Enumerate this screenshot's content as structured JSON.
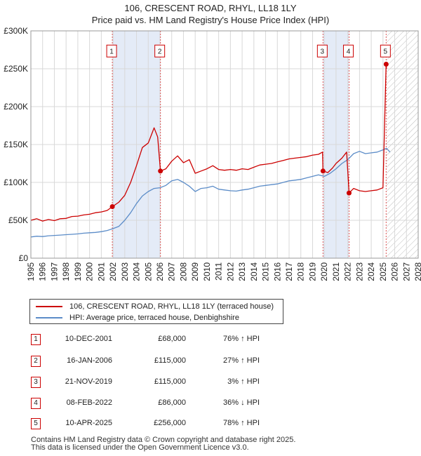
{
  "chart_data": {
    "type": "line",
    "title": "106, CRESCENT ROAD, RHYL, LL18 1LY",
    "subtitle": "Price paid vs. HM Land Registry's House Price Index (HPI)",
    "xlim": [
      1995,
      2028
    ],
    "ylim": [
      0,
      300000
    ],
    "x_ticks": [
      1995,
      1996,
      1997,
      1998,
      1999,
      2000,
      2001,
      2002,
      2003,
      2004,
      2005,
      2006,
      2007,
      2008,
      2009,
      2010,
      2011,
      2012,
      2013,
      2014,
      2015,
      2016,
      2017,
      2018,
      2019,
      2020,
      2021,
      2022,
      2023,
      2024,
      2025,
      2026,
      2027,
      2028
    ],
    "y_ticks": [
      {
        "value": 0,
        "label": "£0"
      },
      {
        "value": 50000,
        "label": "£50K"
      },
      {
        "value": 100000,
        "label": "£100K"
      },
      {
        "value": 150000,
        "label": "£150K"
      },
      {
        "value": 200000,
        "label": "£200K"
      },
      {
        "value": 250000,
        "label": "£250K"
      },
      {
        "value": 300000,
        "label": "£300K"
      }
    ],
    "grid": true,
    "future_hatch_from": 2025.3,
    "shaded_periods": [
      [
        2001.94,
        2006.04
      ],
      [
        2019.89,
        2022.11
      ]
    ],
    "series": [
      {
        "name": "106, CRESCENT ROAD, RHYL, LL18 1LY (terraced house)",
        "color": "#cc0000",
        "points": [
          [
            1995,
            50000
          ],
          [
            1995.5,
            52000
          ],
          [
            1996,
            49000
          ],
          [
            1996.5,
            51000
          ],
          [
            1997,
            49500
          ],
          [
            1997.5,
            52000
          ],
          [
            1998,
            52500
          ],
          [
            1998.5,
            55000
          ],
          [
            1999,
            55500
          ],
          [
            1999.5,
            57000
          ],
          [
            2000,
            58000
          ],
          [
            2000.5,
            60000
          ],
          [
            2001,
            61000
          ],
          [
            2001.5,
            63000
          ],
          [
            2001.94,
            68000
          ],
          [
            2002.5,
            74000
          ],
          [
            2003,
            83000
          ],
          [
            2003.5,
            100000
          ],
          [
            2004,
            122000
          ],
          [
            2004.5,
            146000
          ],
          [
            2005,
            152000
          ],
          [
            2005.3,
            164000
          ],
          [
            2005.5,
            172000
          ],
          [
            2005.8,
            160000
          ],
          [
            2006.04,
            115000
          ],
          [
            2006.5,
            118000
          ],
          [
            2007,
            128000
          ],
          [
            2007.5,
            135000
          ],
          [
            2008,
            126000
          ],
          [
            2008.5,
            130000
          ],
          [
            2009,
            112000
          ],
          [
            2009.5,
            115000
          ],
          [
            2010,
            118000
          ],
          [
            2010.5,
            122000
          ],
          [
            2011,
            117000
          ],
          [
            2011.5,
            116000
          ],
          [
            2012,
            117000
          ],
          [
            2012.5,
            116000
          ],
          [
            2013,
            118000
          ],
          [
            2013.5,
            117000
          ],
          [
            2014,
            120000
          ],
          [
            2014.5,
            123000
          ],
          [
            2015,
            124000
          ],
          [
            2015.5,
            125000
          ],
          [
            2016,
            127000
          ],
          [
            2016.5,
            129000
          ],
          [
            2017,
            131000
          ],
          [
            2017.5,
            132000
          ],
          [
            2018,
            133000
          ],
          [
            2018.5,
            134000
          ],
          [
            2019,
            136000
          ],
          [
            2019.5,
            137000
          ],
          [
            2019.85,
            140000
          ],
          [
            2019.89,
            115000
          ],
          [
            2020.3,
            113000
          ],
          [
            2020.7,
            119000
          ],
          [
            2021,
            125000
          ],
          [
            2021.5,
            132000
          ],
          [
            2021.9,
            140000
          ],
          [
            2022.11,
            86000
          ],
          [
            2022.5,
            92000
          ],
          [
            2023,
            89000
          ],
          [
            2023.5,
            88000
          ],
          [
            2024,
            89000
          ],
          [
            2024.5,
            90000
          ],
          [
            2025,
            93000
          ],
          [
            2025.27,
            256000
          ],
          [
            2025.3,
            250000
          ]
        ]
      },
      {
        "name": "HPI: Average price, terraced house, Denbighshire",
        "color": "#5b8cc8",
        "points": [
          [
            1995,
            28000
          ],
          [
            1995.5,
            29000
          ],
          [
            1996,
            28500
          ],
          [
            1996.5,
            29500
          ],
          [
            1997,
            30000
          ],
          [
            1997.5,
            30500
          ],
          [
            1998,
            31000
          ],
          [
            1998.5,
            31500
          ],
          [
            1999,
            32000
          ],
          [
            1999.5,
            33000
          ],
          [
            2000,
            33500
          ],
          [
            2000.5,
            34000
          ],
          [
            2001,
            35000
          ],
          [
            2001.5,
            36500
          ],
          [
            2002,
            39000
          ],
          [
            2002.5,
            42000
          ],
          [
            2003,
            50000
          ],
          [
            2003.5,
            60000
          ],
          [
            2004,
            72000
          ],
          [
            2004.5,
            82000
          ],
          [
            2005,
            88000
          ],
          [
            2005.5,
            92000
          ],
          [
            2006,
            93000
          ],
          [
            2006.5,
            96000
          ],
          [
            2007,
            102000
          ],
          [
            2007.5,
            104000
          ],
          [
            2008,
            100000
          ],
          [
            2008.5,
            95000
          ],
          [
            2009,
            88000
          ],
          [
            2009.5,
            92000
          ],
          [
            2010,
            93000
          ],
          [
            2010.5,
            95000
          ],
          [
            2011,
            91000
          ],
          [
            2011.5,
            90000
          ],
          [
            2012,
            89000
          ],
          [
            2012.5,
            88500
          ],
          [
            2013,
            90000
          ],
          [
            2013.5,
            91000
          ],
          [
            2014,
            93000
          ],
          [
            2014.5,
            95000
          ],
          [
            2015,
            96000
          ],
          [
            2015.5,
            97000
          ],
          [
            2016,
            98000
          ],
          [
            2016.5,
            100000
          ],
          [
            2017,
            102000
          ],
          [
            2017.5,
            103000
          ],
          [
            2018,
            104000
          ],
          [
            2018.5,
            106000
          ],
          [
            2019,
            108000
          ],
          [
            2019.5,
            110000
          ],
          [
            2020,
            108000
          ],
          [
            2020.5,
            112000
          ],
          [
            2021,
            118000
          ],
          [
            2021.5,
            125000
          ],
          [
            2022,
            130000
          ],
          [
            2022.5,
            138000
          ],
          [
            2023,
            141000
          ],
          [
            2023.5,
            138000
          ],
          [
            2024,
            139000
          ],
          [
            2024.5,
            140000
          ],
          [
            2025,
            143000
          ],
          [
            2025.3,
            145000
          ],
          [
            2025.6,
            140000
          ]
        ]
      }
    ],
    "transactions": [
      {
        "id": "1",
        "x": 2001.94,
        "price": 68000
      },
      {
        "id": "2",
        "x": 2006.04,
        "price": 115000
      },
      {
        "id": "3",
        "x": 2019.89,
        "price": 115000
      },
      {
        "id": "4",
        "x": 2022.11,
        "price": 86000
      },
      {
        "id": "5",
        "x": 2025.27,
        "price": 256000
      }
    ],
    "marker_label_value": 272000
  },
  "title": "106, CRESCENT ROAD, RHYL, LL18 1LY",
  "subtitle": "Price paid vs. HM Land Registry's House Price Index (HPI)",
  "legend": {
    "red_label": "106, CRESCENT ROAD, RHYL, LL18 1LY (terraced house)",
    "blue_label": "HPI: Average price, terraced house, Denbighshire"
  },
  "table": [
    {
      "id": "1",
      "date": "10-DEC-2001",
      "price": "£68,000",
      "hpi": "76% ↑ HPI"
    },
    {
      "id": "2",
      "date": "16-JAN-2006",
      "price": "£115,000",
      "hpi": "27% ↑ HPI"
    },
    {
      "id": "3",
      "date": "21-NOV-2019",
      "price": "£115,000",
      "hpi": "3% ↑ HPI"
    },
    {
      "id": "4",
      "date": "08-FEB-2022",
      "price": "£86,000",
      "hpi": "36% ↓ HPI"
    },
    {
      "id": "5",
      "date": "10-APR-2025",
      "price": "£256,000",
      "hpi": "78% ↑ HPI"
    }
  ],
  "footer": {
    "line1": "Contains HM Land Registry data © Crown copyright and database right 2025.",
    "line2": "This data is licensed under the Open Government Licence v3.0."
  }
}
